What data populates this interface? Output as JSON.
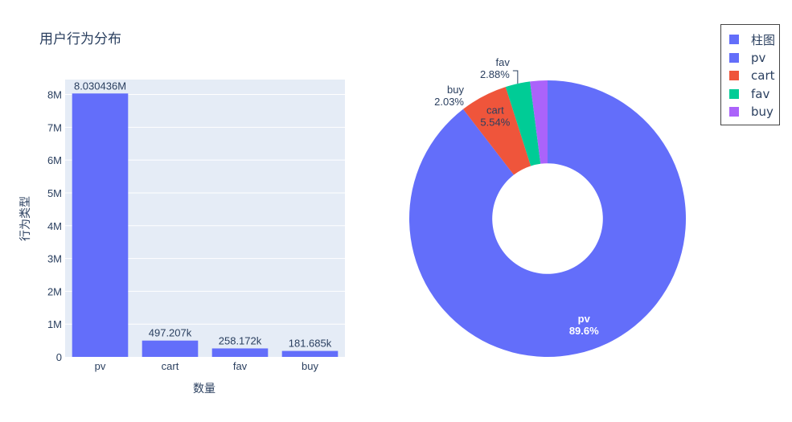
{
  "title": "用户行为分布",
  "colors": {
    "bar": "#636efa",
    "plot_bg": "#e5ecf6",
    "grid": "#ffffff",
    "text": "#2a3f5f",
    "slices": [
      "#636efa",
      "#ef553b",
      "#00cc96",
      "#ab63fa"
    ]
  },
  "legend": {
    "items": [
      {
        "label": "柱图",
        "color": "#636efa"
      },
      {
        "label": "pv",
        "color": "#636efa"
      },
      {
        "label": "cart",
        "color": "#ef553b"
      },
      {
        "label": "fav",
        "color": "#00cc96"
      },
      {
        "label": "buy",
        "color": "#ab63fa"
      }
    ],
    "placement": "top-right"
  },
  "chart_data": [
    {
      "type": "bar",
      "series_name": "柱图",
      "categories": [
        "pv",
        "cart",
        "fav",
        "buy"
      ],
      "values": [
        8030436,
        497207,
        258172,
        181685
      ],
      "data_labels": [
        "8.030436M",
        "497.207k",
        "258.172k",
        "181.685k"
      ],
      "xlabel": "数量",
      "ylabel": "行为类型",
      "ylim": [
        0,
        8454143
      ],
      "yticks": [
        0,
        1000000,
        2000000,
        3000000,
        4000000,
        5000000,
        6000000,
        7000000,
        8000000
      ],
      "ytick_labels": [
        "0",
        "1M",
        "2M",
        "3M",
        "4M",
        "5M",
        "6M",
        "7M",
        "8M"
      ],
      "grid": true
    },
    {
      "type": "pie",
      "hole": 0.4,
      "labels": [
        "pv",
        "cart",
        "fav",
        "buy"
      ],
      "values": [
        8030436,
        497207,
        258172,
        181685
      ],
      "percent_labels": [
        "89.6%",
        "5.54%",
        "2.88%",
        "2.03%"
      ],
      "direction": "clockwise"
    }
  ]
}
